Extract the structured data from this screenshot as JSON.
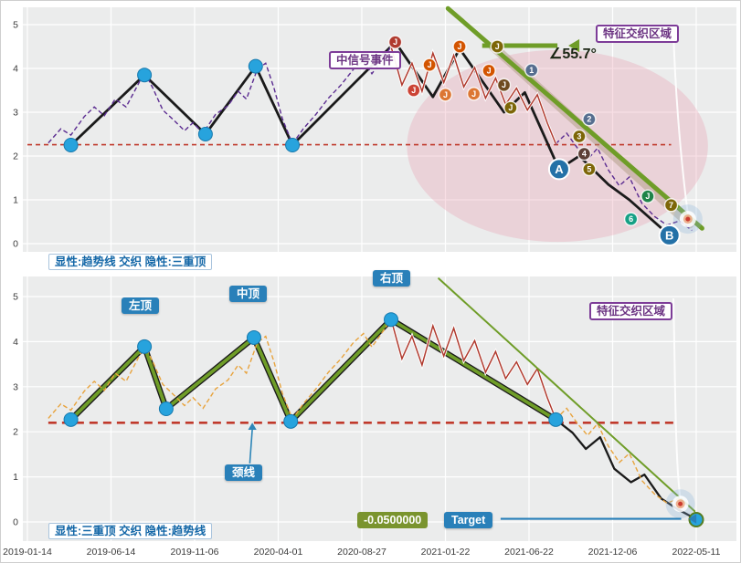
{
  "figure": {
    "bg": "#ffffff",
    "plot_bg": "#ebecec",
    "grid_color": "#ffffff",
    "border": "#cfcfcf"
  },
  "labels": {
    "signal_event": "中信号事件",
    "region_top": "特征交织区域",
    "region_bottom": "特征交织区域",
    "angle": "∠55.7°",
    "left_top": "左顶",
    "mid_top": "中顶",
    "right_top": "右顶",
    "neckline": "颈线",
    "target_value": "-0.0500000",
    "target_label": "Target",
    "legend_top": "显性:趋势线 交织 隐性:三重顶",
    "legend_bottom": "显性:三重顶 交织 隐性:趋势线"
  },
  "axes": {
    "x_labels": [
      "2019-01-14",
      "2019-06-14",
      "2019-11-06",
      "2020-04-01",
      "2020-08-27",
      "2021-01-22",
      "2021-06-22",
      "2021-12-06",
      "2022-05-11"
    ],
    "y_labels": [
      "0",
      "1",
      "2",
      "3",
      "4",
      "5"
    ]
  },
  "colors": {
    "zigzag": "#1a1a1a",
    "pivot_dot": "#27a3dd",
    "price_top": "#5b2c91",
    "price_bottom": "#e8a33d",
    "red_overlay": "#b03a2e",
    "neckline": "#c0392b",
    "green": "#6f9d28",
    "band": "rgba(170,150,125,0.45)",
    "ellipse": "rgba(233,150,170,0.30)",
    "arrow_blue": "#2980b9",
    "big_point": "#2471a7"
  },
  "chart_data": [
    {
      "type": "line",
      "panel": "top",
      "ylim": [
        0,
        5
      ],
      "legend": "显性:趋势线 交织 隐性:三重顶",
      "neckline": {
        "y": 2.26,
        "x1": 0.0,
        "x2": 7.7
      },
      "zigzag": [
        [
          0.52,
          2.25
        ],
        [
          1.4,
          3.85
        ],
        [
          2.13,
          2.5
        ],
        [
          2.73,
          4.05
        ],
        [
          3.17,
          2.25
        ],
        [
          4.4,
          4.6
        ],
        [
          4.85,
          3.35
        ],
        [
          5.17,
          4.45
        ],
        [
          5.7,
          3.0
        ],
        [
          5.95,
          3.45
        ],
        [
          6.36,
          1.7
        ],
        [
          6.6,
          2.0
        ],
        [
          6.95,
          1.35
        ],
        [
          7.2,
          1.0
        ],
        [
          7.68,
          0.19
        ]
      ],
      "price": [
        [
          0.25,
          2.3
        ],
        [
          0.4,
          2.62
        ],
        [
          0.52,
          2.48
        ],
        [
          0.68,
          2.9
        ],
        [
          0.8,
          3.12
        ],
        [
          0.92,
          2.92
        ],
        [
          1.05,
          3.3
        ],
        [
          1.18,
          3.12
        ],
        [
          1.32,
          3.62
        ],
        [
          1.4,
          3.92
        ],
        [
          1.5,
          3.55
        ],
        [
          1.62,
          3.05
        ],
        [
          1.75,
          2.82
        ],
        [
          1.88,
          2.58
        ],
        [
          1.98,
          2.76
        ],
        [
          2.1,
          2.52
        ],
        [
          2.25,
          2.95
        ],
        [
          2.4,
          3.15
        ],
        [
          2.52,
          3.48
        ],
        [
          2.62,
          3.3
        ],
        [
          2.75,
          3.98
        ],
        [
          2.85,
          4.12
        ],
        [
          2.95,
          3.55
        ],
        [
          3.05,
          2.85
        ],
        [
          3.17,
          2.28
        ],
        [
          3.3,
          2.62
        ],
        [
          3.45,
          2.95
        ],
        [
          3.6,
          3.32
        ],
        [
          3.75,
          3.62
        ],
        [
          3.9,
          3.98
        ],
        [
          4.02,
          4.18
        ],
        [
          4.12,
          3.88
        ],
        [
          4.25,
          4.22
        ],
        [
          4.35,
          4.5
        ],
        [
          4.48,
          3.62
        ],
        [
          4.6,
          4.12
        ],
        [
          4.72,
          3.48
        ],
        [
          4.85,
          4.35
        ],
        [
          4.98,
          3.68
        ],
        [
          5.1,
          4.3
        ],
        [
          5.22,
          3.58
        ],
        [
          5.35,
          4.02
        ],
        [
          5.48,
          3.32
        ],
        [
          5.6,
          3.78
        ],
        [
          5.72,
          3.18
        ],
        [
          5.85,
          3.55
        ],
        [
          5.98,
          3.05
        ],
        [
          6.1,
          3.4
        ],
        [
          6.22,
          2.75
        ],
        [
          6.32,
          2.28
        ],
        [
          6.45,
          2.52
        ],
        [
          6.58,
          2.18
        ],
        [
          6.7,
          1.92
        ],
        [
          6.82,
          2.18
        ],
        [
          6.95,
          1.68
        ],
        [
          7.08,
          1.32
        ],
        [
          7.2,
          1.52
        ],
        [
          7.35,
          0.92
        ],
        [
          7.5,
          0.62
        ],
        [
          7.65,
          0.42
        ],
        [
          7.8,
          0.52
        ],
        [
          7.95,
          0.3
        ]
      ],
      "trendline": {
        "from": [
          5.03,
          5.37
        ],
        "to": [
          8.07,
          0.35
        ],
        "angle_deg": 55.7
      },
      "signal_arrow": {
        "from": [
          5.44,
          4.52
        ],
        "to": [
          6.34,
          4.52
        ]
      },
      "band": {
        "from": [
          5.57,
          4.5
        ],
        "to": [
          7.92,
          0.45
        ]
      },
      "ellipse": {
        "cx": 6.34,
        "cy": 2.23,
        "rx": 1.8,
        "ry": 2.19
      },
      "pivots": [
        [
          0.52,
          2.25
        ],
        [
          1.4,
          3.85
        ],
        [
          2.13,
          2.5
        ],
        [
          2.73,
          4.05
        ],
        [
          3.17,
          2.25
        ]
      ],
      "markers": [
        {
          "x": 4.4,
          "v": 4.6,
          "t": "J",
          "bg": "#b03a2e"
        },
        {
          "x": 4.62,
          "v": 3.5,
          "t": "J",
          "bg": "#cb4335"
        },
        {
          "x": 4.81,
          "v": 4.08,
          "t": "J",
          "bg": "#d35400"
        },
        {
          "x": 5.0,
          "v": 3.4,
          "t": "J",
          "bg": "#dc7633"
        },
        {
          "x": 5.17,
          "v": 4.5,
          "t": "J",
          "bg": "#d35400"
        },
        {
          "x": 5.34,
          "v": 3.42,
          "t": "J",
          "bg": "#dc7633"
        },
        {
          "x": 5.52,
          "v": 3.95,
          "t": "J",
          "bg": "#d35400"
        },
        {
          "x": 5.62,
          "v": 4.5,
          "t": "J",
          "bg": "#7d6608"
        },
        {
          "x": 5.7,
          "v": 3.62,
          "t": "J",
          "bg": "#6e4a1f"
        },
        {
          "x": 5.78,
          "v": 3.1,
          "t": "J",
          "bg": "#7d6608"
        },
        {
          "x": 6.03,
          "v": 3.96,
          "t": "1",
          "bg": "#566e8f"
        },
        {
          "x": 6.72,
          "v": 2.84,
          "t": "2",
          "bg": "#566e8f"
        },
        {
          "x": 6.6,
          "v": 2.45,
          "t": "3",
          "bg": "#7d6608"
        },
        {
          "x": 6.66,
          "v": 2.05,
          "t": "4",
          "bg": "#5d4037"
        },
        {
          "x": 6.72,
          "v": 1.7,
          "t": "5",
          "bg": "#7d6608"
        },
        {
          "x": 7.42,
          "v": 1.08,
          "t": "J",
          "bg": "#1e8449"
        },
        {
          "x": 7.22,
          "v": 0.56,
          "t": "6",
          "bg": "#16a085"
        },
        {
          "x": 7.7,
          "v": 0.88,
          "t": "7",
          "bg": "#7d6608"
        }
      ],
      "big_points": [
        {
          "t": "A",
          "x": 6.36,
          "v": 1.7
        },
        {
          "t": "B",
          "x": 7.68,
          "v": 0.19
        }
      ],
      "glow": [
        7.9,
        0.56
      ]
    },
    {
      "type": "line",
      "panel": "bottom",
      "ylim": [
        0,
        5
      ],
      "legend": "显性:三重顶 交织 隐性:趋势线",
      "neckline": {
        "y": 2.2,
        "x1": 0.25,
        "x2": 7.75
      },
      "zigzag": [
        [
          0.52,
          2.27
        ],
        [
          1.4,
          3.89
        ],
        [
          1.66,
          2.51
        ],
        [
          2.71,
          4.09
        ],
        [
          3.15,
          2.23
        ],
        [
          4.35,
          4.49
        ],
        [
          6.32,
          2.27
        ],
        [
          6.52,
          1.98
        ],
        [
          6.68,
          1.62
        ],
        [
          6.85,
          1.88
        ],
        [
          7.02,
          1.18
        ],
        [
          7.22,
          0.88
        ],
        [
          7.38,
          1.05
        ],
        [
          7.58,
          0.52
        ],
        [
          7.78,
          0.28
        ],
        [
          8.0,
          0.06
        ]
      ],
      "green_overlay": [
        [
          0.52,
          2.27
        ],
        [
          1.4,
          3.89
        ],
        [
          1.66,
          2.51
        ],
        [
          2.71,
          4.09
        ],
        [
          3.15,
          2.23
        ],
        [
          4.35,
          4.49
        ],
        [
          6.32,
          2.27
        ]
      ],
      "price": [
        [
          0.25,
          2.3
        ],
        [
          0.4,
          2.62
        ],
        [
          0.52,
          2.48
        ],
        [
          0.68,
          2.9
        ],
        [
          0.8,
          3.12
        ],
        [
          0.92,
          2.92
        ],
        [
          1.05,
          3.3
        ],
        [
          1.18,
          3.12
        ],
        [
          1.32,
          3.62
        ],
        [
          1.4,
          3.92
        ],
        [
          1.5,
          3.55
        ],
        [
          1.62,
          3.05
        ],
        [
          1.75,
          2.82
        ],
        [
          1.88,
          2.58
        ],
        [
          1.98,
          2.76
        ],
        [
          2.1,
          2.52
        ],
        [
          2.25,
          2.95
        ],
        [
          2.4,
          3.15
        ],
        [
          2.52,
          3.48
        ],
        [
          2.62,
          3.3
        ],
        [
          2.75,
          3.98
        ],
        [
          2.85,
          4.12
        ],
        [
          2.95,
          3.55
        ],
        [
          3.05,
          2.85
        ],
        [
          3.17,
          2.28
        ],
        [
          3.3,
          2.62
        ],
        [
          3.45,
          2.95
        ],
        [
          3.6,
          3.32
        ],
        [
          3.75,
          3.62
        ],
        [
          3.9,
          3.98
        ],
        [
          4.02,
          4.18
        ],
        [
          4.12,
          3.88
        ],
        [
          4.25,
          4.22
        ],
        [
          4.35,
          4.5
        ],
        [
          4.48,
          3.62
        ],
        [
          4.6,
          4.12
        ],
        [
          4.72,
          3.48
        ],
        [
          4.85,
          4.35
        ],
        [
          4.98,
          3.68
        ],
        [
          5.1,
          4.3
        ],
        [
          5.22,
          3.58
        ],
        [
          5.35,
          4.02
        ],
        [
          5.48,
          3.32
        ],
        [
          5.6,
          3.78
        ],
        [
          5.72,
          3.18
        ],
        [
          5.85,
          3.55
        ],
        [
          5.98,
          3.05
        ],
        [
          6.1,
          3.4
        ],
        [
          6.22,
          2.75
        ],
        [
          6.32,
          2.28
        ],
        [
          6.45,
          2.52
        ],
        [
          6.58,
          2.18
        ],
        [
          6.7,
          1.92
        ],
        [
          6.82,
          2.18
        ],
        [
          6.95,
          1.68
        ],
        [
          7.08,
          1.32
        ],
        [
          7.2,
          1.52
        ],
        [
          7.35,
          0.92
        ],
        [
          7.5,
          0.62
        ],
        [
          7.65,
          0.42
        ],
        [
          7.8,
          0.52
        ],
        [
          7.95,
          0.3
        ]
      ],
      "trendline": {
        "from": [
          4.92,
          5.4
        ],
        "to": [
          7.98,
          0.24
        ]
      },
      "pivots": [
        [
          0.52,
          2.27
        ],
        [
          1.4,
          3.89
        ],
        [
          1.66,
          2.51
        ],
        [
          2.71,
          4.09
        ],
        [
          3.15,
          2.23
        ],
        [
          4.35,
          4.49
        ],
        [
          6.32,
          2.27
        ]
      ],
      "end_point": [
        8.0,
        0.05
      ],
      "target": {
        "value": -0.05,
        "arrow_from": [
          5.66,
          0.07
        ],
        "arrow_to": [
          7.82,
          0.07
        ]
      },
      "neckline_arrow": {
        "from": [
          2.66,
          1.3
        ],
        "to": [
          2.69,
          2.06
        ]
      },
      "glow": [
        7.81,
        0.4
      ]
    }
  ]
}
